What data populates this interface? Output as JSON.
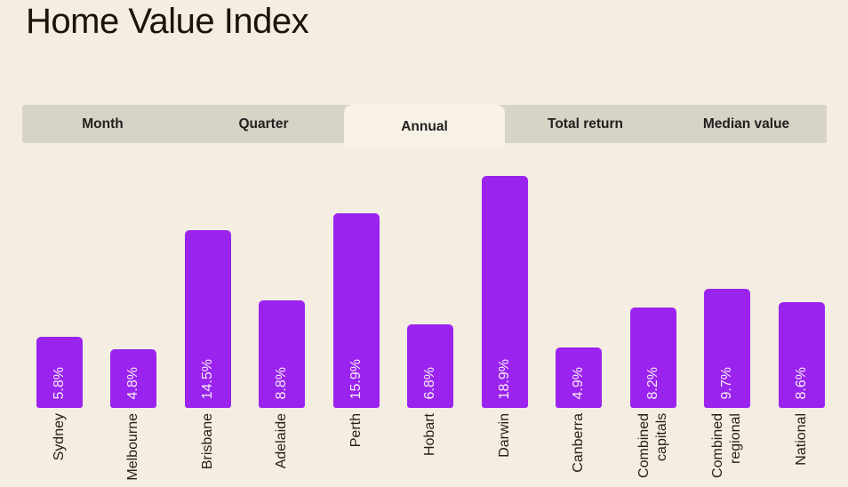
{
  "page": {
    "title": "Home Value Index"
  },
  "colors": {
    "background": "#f4ede1",
    "tab_bar_background": "#d8d3c7",
    "active_tab_background": "#f8f2e6",
    "tab_text": "#21211f",
    "bar": "#9a23ee",
    "bar_value_text": "#f6eef4",
    "axis_label_text": "#272011",
    "title_text": "#1d1409"
  },
  "tabs": [
    {
      "label": "Month",
      "active": false
    },
    {
      "label": "Quarter",
      "active": false
    },
    {
      "label": "Annual",
      "active": true
    },
    {
      "label": "Total return",
      "active": false
    },
    {
      "label": "Median value",
      "active": false
    }
  ],
  "chart_data": {
    "type": "bar",
    "title": "Home Value Index",
    "subtitle": "",
    "selected_tab": "Annual",
    "orientation": "vertical",
    "unit": "%",
    "ylim": [
      0,
      19
    ],
    "grid": false,
    "legend": "none",
    "bar_color": "#9a23ee",
    "categories": [
      "Sydney",
      "Melbourne",
      "Brisbane",
      "Adelaide",
      "Perth",
      "Hobart",
      "Darwin",
      "Canberra",
      "Combined\ncapitals",
      "Combined\nregional",
      "National"
    ],
    "values": [
      5.8,
      4.8,
      14.5,
      8.8,
      15.9,
      6.8,
      18.9,
      4.9,
      8.2,
      9.7,
      8.6
    ],
    "value_labels": [
      "5.8%",
      "4.8%",
      "14.5%",
      "8.8%",
      "15.9%",
      "6.8%",
      "18.9%",
      "4.9%",
      "8.2%",
      "9.7%",
      "8.6%"
    ]
  }
}
